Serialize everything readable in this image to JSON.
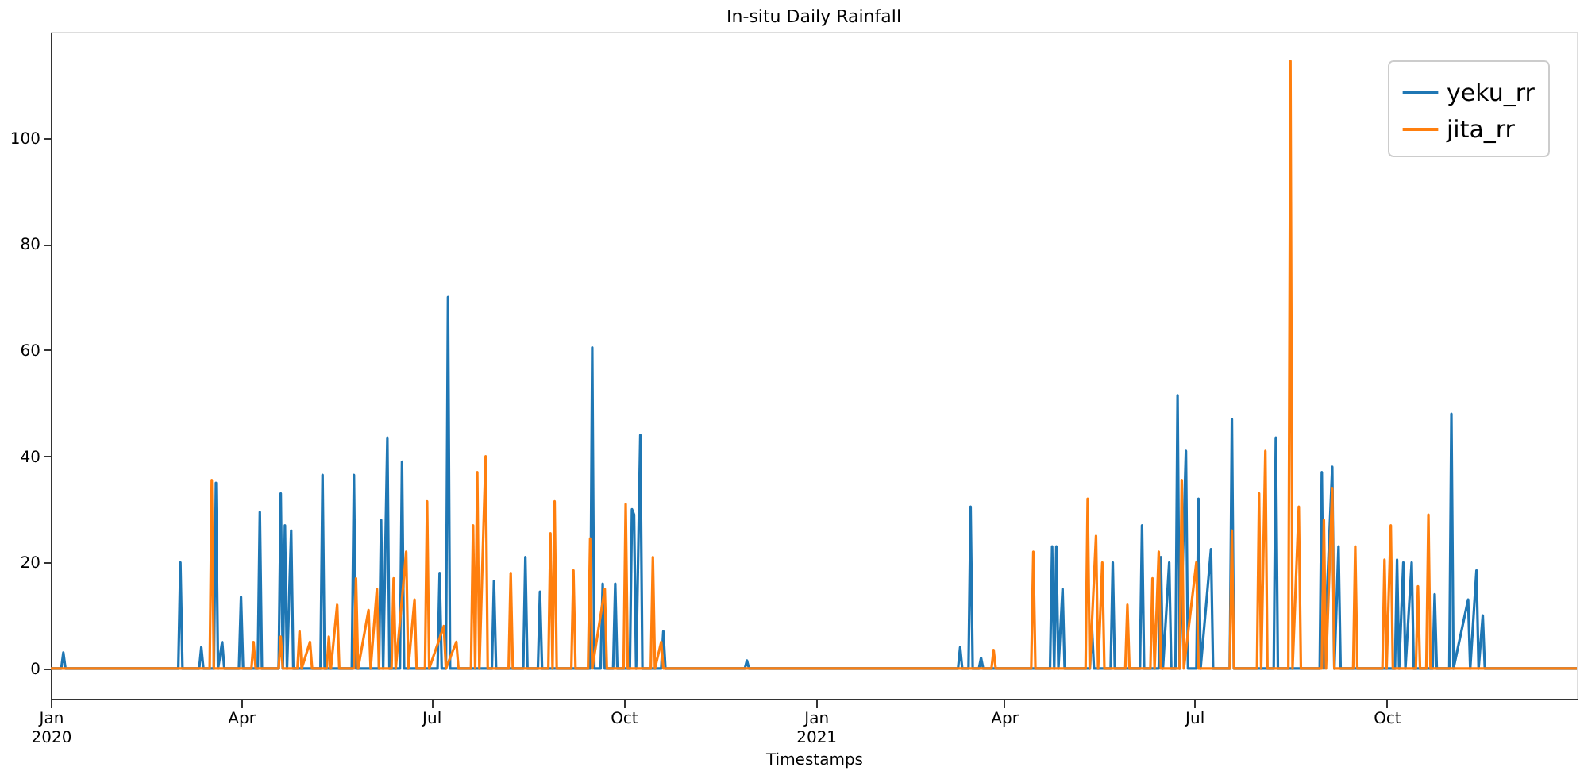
{
  "chart_data": {
    "type": "line",
    "title": "In-situ Daily Rainfall",
    "xlabel": "Timestamps",
    "xlim": [
      "2020-01-01",
      "2021-12-31"
    ],
    "ylim": [
      -5.7,
      120
    ],
    "xticks": [
      {
        "value": "2020-01-01",
        "label": "Jan\n2020"
      },
      {
        "value": "2020-04-01",
        "label": "Apr"
      },
      {
        "value": "2020-07-01",
        "label": "Jul"
      },
      {
        "value": "2020-10-01",
        "label": "Oct"
      },
      {
        "value": "2021-01-01",
        "label": "Jan\n2021"
      },
      {
        "value": "2021-04-01",
        "label": "Apr"
      },
      {
        "value": "2021-07-01",
        "label": "Jul"
      },
      {
        "value": "2021-10-01",
        "label": "Oct"
      }
    ],
    "yticks": [
      0,
      20,
      40,
      60,
      80,
      100
    ],
    "grid": false,
    "legend": "top right",
    "line_style": "solid",
    "marker": "none",
    "series": [
      {
        "name": "yeku_rr",
        "color": "#1f77b4",
        "x": [
          "2020-01-01",
          "2020-01-06",
          "2020-01-07",
          "2020-01-08",
          "2020-03-02",
          "2020-03-03",
          "2020-03-04",
          "2020-03-12",
          "2020-03-13",
          "2020-03-14",
          "2020-03-19",
          "2020-03-20",
          "2020-03-21",
          "2020-03-23",
          "2020-03-24",
          "2020-03-31",
          "2020-04-01",
          "2020-04-02",
          "2020-04-09",
          "2020-04-10",
          "2020-04-11",
          "2020-04-19",
          "2020-04-20",
          "2020-04-21",
          "2020-04-22",
          "2020-04-23",
          "2020-04-25",
          "2020-04-26",
          "2020-05-09",
          "2020-05-10",
          "2020-05-11",
          "2020-05-24",
          "2020-05-25",
          "2020-05-26",
          "2020-06-06",
          "2020-06-07",
          "2020-06-08",
          "2020-06-10",
          "2020-06-11",
          "2020-06-16",
          "2020-06-17",
          "2020-06-18",
          "2020-07-04",
          "2020-07-05",
          "2020-07-06",
          "2020-07-08",
          "2020-07-09",
          "2020-07-10",
          "2020-07-30",
          "2020-07-31",
          "2020-08-01",
          "2020-08-14",
          "2020-08-15",
          "2020-08-16",
          "2020-08-21",
          "2020-08-22",
          "2020-08-23",
          "2020-09-15",
          "2020-09-16",
          "2020-09-17",
          "2020-09-20",
          "2020-09-21",
          "2020-09-22",
          "2020-09-26",
          "2020-09-27",
          "2020-09-28",
          "2020-10-04",
          "2020-10-05",
          "2020-10-06",
          "2020-10-07",
          "2020-10-09",
          "2020-10-10",
          "2020-10-19",
          "2020-10-20",
          "2020-10-21",
          "2020-11-28",
          "2020-11-29",
          "2020-11-30",
          "2021-03-10",
          "2021-03-11",
          "2021-03-12",
          "2021-03-15",
          "2021-03-16",
          "2021-03-17",
          "2021-03-20",
          "2021-03-21",
          "2021-03-22",
          "2021-04-23",
          "2021-04-24",
          "2021-04-25",
          "2021-04-26",
          "2021-04-27",
          "2021-04-29",
          "2021-04-30",
          "2021-05-12",
          "2021-05-13",
          "2021-05-14",
          "2021-05-22",
          "2021-05-23",
          "2021-05-24",
          "2021-06-05",
          "2021-06-06",
          "2021-06-07",
          "2021-06-14",
          "2021-06-15",
          "2021-06-16",
          "2021-06-19",
          "2021-06-20",
          "2021-06-22",
          "2021-06-23",
          "2021-06-24",
          "2021-06-27",
          "2021-06-28",
          "2021-07-02",
          "2021-07-03",
          "2021-07-04",
          "2021-07-09",
          "2021-07-10",
          "2021-07-18",
          "2021-07-19",
          "2021-07-20",
          "2021-08-08",
          "2021-08-09",
          "2021-08-10",
          "2021-08-30",
          "2021-08-31",
          "2021-09-01",
          "2021-09-05",
          "2021-09-06",
          "2021-09-08",
          "2021-09-09",
          "2021-10-05",
          "2021-10-06",
          "2021-10-07",
          "2021-10-09",
          "2021-10-10",
          "2021-10-13",
          "2021-10-14",
          "2021-10-23",
          "2021-10-24",
          "2021-10-25",
          "2021-10-31",
          "2021-11-01",
          "2021-11-02",
          "2021-11-09",
          "2021-11-10",
          "2021-11-13",
          "2021-11-14",
          "2021-11-16",
          "2021-11-17",
          "2021-12-31"
        ],
        "values": [
          0,
          0,
          3,
          0,
          0,
          20,
          0,
          0,
          4,
          0,
          0,
          35,
          0,
          5,
          0,
          0,
          13.5,
          0,
          0,
          29.5,
          0,
          0,
          33,
          0,
          27,
          0,
          26,
          0,
          0,
          36.5,
          0,
          0,
          36.5,
          0,
          0,
          28,
          0,
          43.5,
          0,
          0,
          39,
          0,
          0,
          18,
          0,
          0,
          70,
          0,
          0,
          16.5,
          0,
          0,
          21,
          0,
          0,
          14.5,
          0,
          0,
          60.5,
          0,
          0,
          16,
          0,
          0,
          16,
          0,
          0,
          30,
          29,
          0,
          44,
          0,
          0,
          7,
          0,
          0,
          1.5,
          0,
          0,
          4,
          0,
          0,
          30.5,
          0,
          0,
          2,
          0,
          0,
          23,
          0,
          23,
          0,
          15,
          0,
          0,
          8,
          0,
          0,
          20,
          0,
          0,
          27,
          0,
          0,
          21,
          0,
          20,
          0,
          0,
          51.5,
          0,
          41,
          0,
          0,
          32,
          0,
          22.5,
          0,
          0,
          47,
          0,
          0,
          43.5,
          0,
          0,
          37,
          0,
          38,
          0,
          23,
          0,
          0,
          20.5,
          0,
          20,
          0,
          20,
          0,
          0,
          14,
          0,
          0,
          48,
          0,
          13,
          0,
          18.5,
          0,
          10,
          0,
          0
        ]
      },
      {
        "name": "jita_rr",
        "color": "#ff7f0e",
        "x": [
          "2020-01-01",
          "2020-03-17",
          "2020-03-18",
          "2020-03-19",
          "2020-04-06",
          "2020-04-07",
          "2020-04-08",
          "2020-04-19",
          "2020-04-20",
          "2020-04-21",
          "2020-04-28",
          "2020-04-29",
          "2020-04-30",
          "2020-05-04",
          "2020-05-05",
          "2020-05-12",
          "2020-05-13",
          "2020-05-14",
          "2020-05-17",
          "2020-05-18",
          "2020-05-25",
          "2020-05-26",
          "2020-05-27",
          "2020-06-01",
          "2020-06-02",
          "2020-06-05",
          "2020-06-06",
          "2020-06-12",
          "2020-06-13",
          "2020-06-14",
          "2020-06-19",
          "2020-06-20",
          "2020-06-23",
          "2020-06-24",
          "2020-06-28",
          "2020-06-29",
          "2020-06-30",
          "2020-07-07",
          "2020-07-08",
          "2020-07-13",
          "2020-07-14",
          "2020-07-20",
          "2020-07-21",
          "2020-07-22",
          "2020-07-23",
          "2020-07-24",
          "2020-07-27",
          "2020-07-28",
          "2020-08-07",
          "2020-08-08",
          "2020-08-09",
          "2020-08-26",
          "2020-08-27",
          "2020-08-28",
          "2020-08-29",
          "2020-08-30",
          "2020-09-06",
          "2020-09-07",
          "2020-09-08",
          "2020-09-14",
          "2020-09-15",
          "2020-09-16",
          "2020-09-22",
          "2020-09-23",
          "2020-10-01",
          "2020-10-02",
          "2020-10-03",
          "2020-10-14",
          "2020-10-15",
          "2020-10-16",
          "2020-10-19",
          "2020-10-20",
          "2021-03-26",
          "2021-03-27",
          "2021-03-28",
          "2021-04-14",
          "2021-04-15",
          "2021-04-16",
          "2021-05-10",
          "2021-05-11",
          "2021-05-12",
          "2021-05-15",
          "2021-05-16",
          "2021-05-18",
          "2021-05-19",
          "2021-05-29",
          "2021-05-30",
          "2021-05-31",
          "2021-06-10",
          "2021-06-11",
          "2021-06-12",
          "2021-06-14",
          "2021-06-15",
          "2021-06-24",
          "2021-06-25",
          "2021-06-26",
          "2021-07-02",
          "2021-07-03",
          "2021-07-18",
          "2021-07-19",
          "2021-07-20",
          "2021-07-31",
          "2021-08-01",
          "2021-08-02",
          "2021-08-04",
          "2021-08-05",
          "2021-08-15",
          "2021-08-16",
          "2021-08-17",
          "2021-08-20",
          "2021-08-21",
          "2021-08-31",
          "2021-09-01",
          "2021-09-02",
          "2021-09-05",
          "2021-09-06",
          "2021-09-15",
          "2021-09-16",
          "2021-09-17",
          "2021-09-29",
          "2021-09-30",
          "2021-10-01",
          "2021-10-03",
          "2021-10-04",
          "2021-10-15",
          "2021-10-16",
          "2021-10-17",
          "2021-10-20",
          "2021-10-21",
          "2021-10-22",
          "2021-12-31"
        ],
        "values": [
          0,
          0,
          35.5,
          0,
          0,
          5,
          0,
          0,
          6,
          0,
          0,
          7,
          0,
          5,
          0,
          0,
          6,
          0,
          12,
          0,
          0,
          17,
          0,
          11,
          0,
          15,
          0,
          0,
          17,
          0,
          22,
          0,
          13,
          0,
          0,
          31.5,
          0,
          8,
          0,
          5,
          0,
          0,
          27,
          0,
          37,
          0,
          40,
          0,
          0,
          18,
          0,
          0,
          25.5,
          0,
          31.5,
          0,
          0,
          18.5,
          0,
          0,
          24.5,
          0,
          15,
          0,
          0,
          31,
          0,
          0,
          21,
          0,
          5,
          0,
          0,
          3.5,
          0,
          0,
          22,
          0,
          0,
          32,
          0,
          25,
          0,
          20,
          0,
          0,
          12,
          0,
          0,
          17,
          0,
          22,
          0,
          0,
          35.5,
          0,
          20,
          0,
          0,
          26,
          0,
          0,
          33,
          0,
          41,
          0,
          0,
          114.5,
          0,
          30.5,
          0,
          0,
          28,
          0,
          34,
          0,
          0,
          23,
          0,
          0,
          20.5,
          0,
          27,
          0,
          0,
          15.5,
          0,
          0,
          29,
          0,
          0
        ]
      }
    ]
  }
}
